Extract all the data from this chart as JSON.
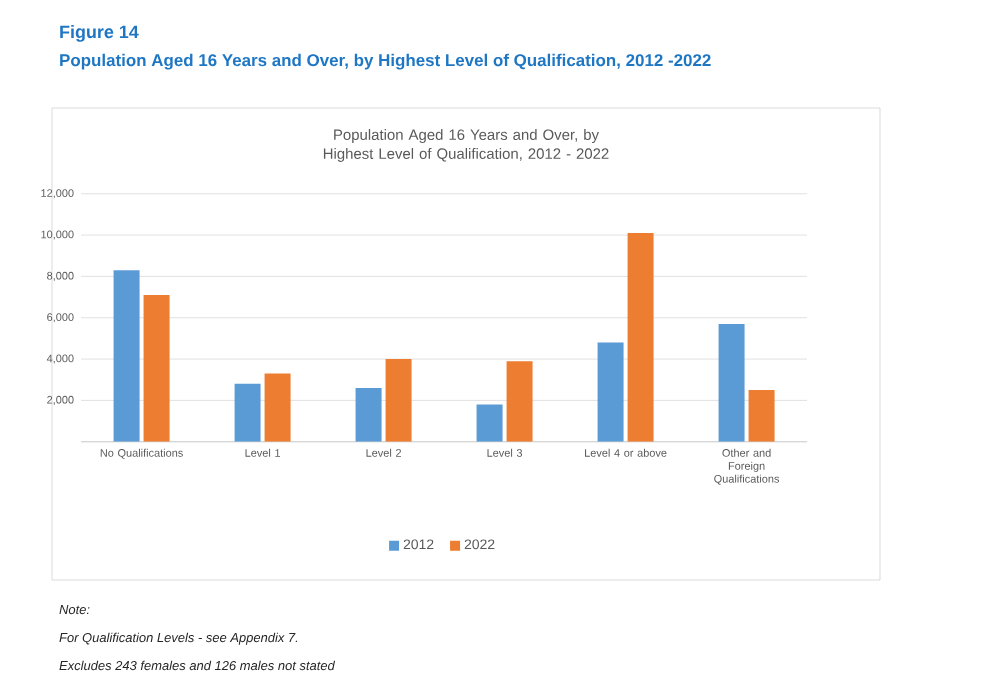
{
  "chart_data": {
    "type": "bar",
    "title": "Population Aged 16 Years and Over, by Highest Level of Qualification, 2012 - 2022",
    "categories": [
      "No Qualifications",
      "Level 1",
      "Level 2",
      "Level 3",
      "Level 4 or above",
      "Other and Foreign Qualifications"
    ],
    "series": [
      {
        "name": "2012",
        "color": "#5b9bd5",
        "values": [
          8300,
          2800,
          2600,
          1800,
          4800,
          5700
        ]
      },
      {
        "name": "2022",
        "color": "#ed7d31",
        "values": [
          7100,
          3300,
          4000,
          3900,
          10100,
          2500
        ]
      }
    ],
    "ylim": [
      0,
      12000
    ],
    "yticks": [
      {
        "value": 0,
        "label": null
      },
      {
        "value": 2000,
        "label": "2,000"
      },
      {
        "value": 4000,
        "label": "4,000"
      },
      {
        "value": 6000,
        "label": "6,000"
      },
      {
        "value": 8000,
        "label": "8,000"
      },
      {
        "value": 10000,
        "label": "10,000"
      },
      {
        "value": 12000,
        "label": "12,000"
      }
    ],
    "grid": "y",
    "legend": "bottom",
    "annotations": [
      "Figure 14",
      "Population Aged 16 Years and Over, by Highest Level of Qualification, 2012 -2022",
      "Note:",
      "For Qualification Levels - see Appendix 7.",
      "Excludes 243 females and 126 males not stated"
    ]
  }
}
